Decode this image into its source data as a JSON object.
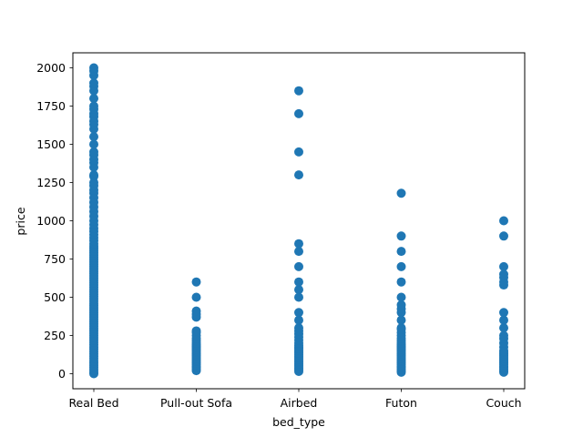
{
  "chart_data": {
    "type": "scatter",
    "xlabel": "bed_type",
    "ylabel": "price",
    "ylim": [
      -100,
      2100
    ],
    "categories": [
      "Real Bed",
      "Pull-out Sofa",
      "Airbed",
      "Futon",
      "Couch"
    ],
    "yticks": [
      0,
      250,
      500,
      750,
      1000,
      1250,
      1500,
      1750,
      2000
    ],
    "ytick_labels": [
      "0",
      "250",
      "500",
      "750",
      "1000",
      "1250",
      "1500",
      "1750",
      "2000"
    ],
    "marker_color": "#1f77b4",
    "grid": false,
    "series": [
      {
        "points": [
          {
            "x": "Real Bed",
            "y": 0
          },
          {
            "x": "Real Bed",
            "y": 10
          },
          {
            "x": "Real Bed",
            "y": 25
          },
          {
            "x": "Real Bed",
            "y": 40
          },
          {
            "x": "Real Bed",
            "y": 55
          },
          {
            "x": "Real Bed",
            "y": 70
          },
          {
            "x": "Real Bed",
            "y": 85
          },
          {
            "x": "Real Bed",
            "y": 100
          },
          {
            "x": "Real Bed",
            "y": 115
          },
          {
            "x": "Real Bed",
            "y": 130
          },
          {
            "x": "Real Bed",
            "y": 145
          },
          {
            "x": "Real Bed",
            "y": 160
          },
          {
            "x": "Real Bed",
            "y": 175
          },
          {
            "x": "Real Bed",
            "y": 190
          },
          {
            "x": "Real Bed",
            "y": 205
          },
          {
            "x": "Real Bed",
            "y": 220
          },
          {
            "x": "Real Bed",
            "y": 235
          },
          {
            "x": "Real Bed",
            "y": 250
          },
          {
            "x": "Real Bed",
            "y": 265
          },
          {
            "x": "Real Bed",
            "y": 280
          },
          {
            "x": "Real Bed",
            "y": 295
          },
          {
            "x": "Real Bed",
            "y": 310
          },
          {
            "x": "Real Bed",
            "y": 325
          },
          {
            "x": "Real Bed",
            "y": 340
          },
          {
            "x": "Real Bed",
            "y": 355
          },
          {
            "x": "Real Bed",
            "y": 370
          },
          {
            "x": "Real Bed",
            "y": 385
          },
          {
            "x": "Real Bed",
            "y": 400
          },
          {
            "x": "Real Bed",
            "y": 415
          },
          {
            "x": "Real Bed",
            "y": 430
          },
          {
            "x": "Real Bed",
            "y": 445
          },
          {
            "x": "Real Bed",
            "y": 460
          },
          {
            "x": "Real Bed",
            "y": 475
          },
          {
            "x": "Real Bed",
            "y": 490
          },
          {
            "x": "Real Bed",
            "y": 505
          },
          {
            "x": "Real Bed",
            "y": 520
          },
          {
            "x": "Real Bed",
            "y": 535
          },
          {
            "x": "Real Bed",
            "y": 550
          },
          {
            "x": "Real Bed",
            "y": 565
          },
          {
            "x": "Real Bed",
            "y": 580
          },
          {
            "x": "Real Bed",
            "y": 595
          },
          {
            "x": "Real Bed",
            "y": 610
          },
          {
            "x": "Real Bed",
            "y": 625
          },
          {
            "x": "Real Bed",
            "y": 640
          },
          {
            "x": "Real Bed",
            "y": 655
          },
          {
            "x": "Real Bed",
            "y": 670
          },
          {
            "x": "Real Bed",
            "y": 685
          },
          {
            "x": "Real Bed",
            "y": 700
          },
          {
            "x": "Real Bed",
            "y": 715
          },
          {
            "x": "Real Bed",
            "y": 730
          },
          {
            "x": "Real Bed",
            "y": 745
          },
          {
            "x": "Real Bed",
            "y": 760
          },
          {
            "x": "Real Bed",
            "y": 775
          },
          {
            "x": "Real Bed",
            "y": 790
          },
          {
            "x": "Real Bed",
            "y": 805
          },
          {
            "x": "Real Bed",
            "y": 820
          },
          {
            "x": "Real Bed",
            "y": 835
          },
          {
            "x": "Real Bed",
            "y": 850
          },
          {
            "x": "Real Bed",
            "y": 870
          },
          {
            "x": "Real Bed",
            "y": 890
          },
          {
            "x": "Real Bed",
            "y": 910
          },
          {
            "x": "Real Bed",
            "y": 930
          },
          {
            "x": "Real Bed",
            "y": 950
          },
          {
            "x": "Real Bed",
            "y": 975
          },
          {
            "x": "Real Bed",
            "y": 1000
          },
          {
            "x": "Real Bed",
            "y": 1030
          },
          {
            "x": "Real Bed",
            "y": 1060
          },
          {
            "x": "Real Bed",
            "y": 1090
          },
          {
            "x": "Real Bed",
            "y": 1120
          },
          {
            "x": "Real Bed",
            "y": 1150
          },
          {
            "x": "Real Bed",
            "y": 1180
          },
          {
            "x": "Real Bed",
            "y": 1200
          },
          {
            "x": "Real Bed",
            "y": 1230
          },
          {
            "x": "Real Bed",
            "y": 1250
          },
          {
            "x": "Real Bed",
            "y": 1290
          },
          {
            "x": "Real Bed",
            "y": 1300
          },
          {
            "x": "Real Bed",
            "y": 1350
          },
          {
            "x": "Real Bed",
            "y": 1380
          },
          {
            "x": "Real Bed",
            "y": 1400
          },
          {
            "x": "Real Bed",
            "y": 1430
          },
          {
            "x": "Real Bed",
            "y": 1450
          },
          {
            "x": "Real Bed",
            "y": 1500
          },
          {
            "x": "Real Bed",
            "y": 1550
          },
          {
            "x": "Real Bed",
            "y": 1600
          },
          {
            "x": "Real Bed",
            "y": 1630
          },
          {
            "x": "Real Bed",
            "y": 1650
          },
          {
            "x": "Real Bed",
            "y": 1680
          },
          {
            "x": "Real Bed",
            "y": 1700
          },
          {
            "x": "Real Bed",
            "y": 1730
          },
          {
            "x": "Real Bed",
            "y": 1750
          },
          {
            "x": "Real Bed",
            "y": 1800
          },
          {
            "x": "Real Bed",
            "y": 1850
          },
          {
            "x": "Real Bed",
            "y": 1880
          },
          {
            "x": "Real Bed",
            "y": 1900
          },
          {
            "x": "Real Bed",
            "y": 1950
          },
          {
            "x": "Real Bed",
            "y": 1980
          },
          {
            "x": "Real Bed",
            "y": 2000
          },
          {
            "x": "Pull-out Sofa",
            "y": 20
          },
          {
            "x": "Pull-out Sofa",
            "y": 30
          },
          {
            "x": "Pull-out Sofa",
            "y": 40
          },
          {
            "x": "Pull-out Sofa",
            "y": 50
          },
          {
            "x": "Pull-out Sofa",
            "y": 60
          },
          {
            "x": "Pull-out Sofa",
            "y": 70
          },
          {
            "x": "Pull-out Sofa",
            "y": 80
          },
          {
            "x": "Pull-out Sofa",
            "y": 90
          },
          {
            "x": "Pull-out Sofa",
            "y": 100
          },
          {
            "x": "Pull-out Sofa",
            "y": 110
          },
          {
            "x": "Pull-out Sofa",
            "y": 120
          },
          {
            "x": "Pull-out Sofa",
            "y": 130
          },
          {
            "x": "Pull-out Sofa",
            "y": 140
          },
          {
            "x": "Pull-out Sofa",
            "y": 150
          },
          {
            "x": "Pull-out Sofa",
            "y": 160
          },
          {
            "x": "Pull-out Sofa",
            "y": 170
          },
          {
            "x": "Pull-out Sofa",
            "y": 180
          },
          {
            "x": "Pull-out Sofa",
            "y": 190
          },
          {
            "x": "Pull-out Sofa",
            "y": 200
          },
          {
            "x": "Pull-out Sofa",
            "y": 215
          },
          {
            "x": "Pull-out Sofa",
            "y": 230
          },
          {
            "x": "Pull-out Sofa",
            "y": 250
          },
          {
            "x": "Pull-out Sofa",
            "y": 270
          },
          {
            "x": "Pull-out Sofa",
            "y": 280
          },
          {
            "x": "Pull-out Sofa",
            "y": 370
          },
          {
            "x": "Pull-out Sofa",
            "y": 390
          },
          {
            "x": "Pull-out Sofa",
            "y": 410
          },
          {
            "x": "Pull-out Sofa",
            "y": 500
          },
          {
            "x": "Pull-out Sofa",
            "y": 600
          },
          {
            "x": "Airbed",
            "y": 15
          },
          {
            "x": "Airbed",
            "y": 25
          },
          {
            "x": "Airbed",
            "y": 35
          },
          {
            "x": "Airbed",
            "y": 45
          },
          {
            "x": "Airbed",
            "y": 55
          },
          {
            "x": "Airbed",
            "y": 65
          },
          {
            "x": "Airbed",
            "y": 75
          },
          {
            "x": "Airbed",
            "y": 85
          },
          {
            "x": "Airbed",
            "y": 95
          },
          {
            "x": "Airbed",
            "y": 105
          },
          {
            "x": "Airbed",
            "y": 115
          },
          {
            "x": "Airbed",
            "y": 125
          },
          {
            "x": "Airbed",
            "y": 135
          },
          {
            "x": "Airbed",
            "y": 145
          },
          {
            "x": "Airbed",
            "y": 155
          },
          {
            "x": "Airbed",
            "y": 165
          },
          {
            "x": "Airbed",
            "y": 175
          },
          {
            "x": "Airbed",
            "y": 185
          },
          {
            "x": "Airbed",
            "y": 200
          },
          {
            "x": "Airbed",
            "y": 220
          },
          {
            "x": "Airbed",
            "y": 240
          },
          {
            "x": "Airbed",
            "y": 260
          },
          {
            "x": "Airbed",
            "y": 280
          },
          {
            "x": "Airbed",
            "y": 300
          },
          {
            "x": "Airbed",
            "y": 350
          },
          {
            "x": "Airbed",
            "y": 400
          },
          {
            "x": "Airbed",
            "y": 500
          },
          {
            "x": "Airbed",
            "y": 550
          },
          {
            "x": "Airbed",
            "y": 600
          },
          {
            "x": "Airbed",
            "y": 700
          },
          {
            "x": "Airbed",
            "y": 800
          },
          {
            "x": "Airbed",
            "y": 850
          },
          {
            "x": "Airbed",
            "y": 1300
          },
          {
            "x": "Airbed",
            "y": 1450
          },
          {
            "x": "Airbed",
            "y": 1700
          },
          {
            "x": "Airbed",
            "y": 1850
          },
          {
            "x": "Futon",
            "y": 10
          },
          {
            "x": "Futon",
            "y": 20
          },
          {
            "x": "Futon",
            "y": 30
          },
          {
            "x": "Futon",
            "y": 40
          },
          {
            "x": "Futon",
            "y": 50
          },
          {
            "x": "Futon",
            "y": 60
          },
          {
            "x": "Futon",
            "y": 70
          },
          {
            "x": "Futon",
            "y": 80
          },
          {
            "x": "Futon",
            "y": 90
          },
          {
            "x": "Futon",
            "y": 100
          },
          {
            "x": "Futon",
            "y": 110
          },
          {
            "x": "Futon",
            "y": 120
          },
          {
            "x": "Futon",
            "y": 130
          },
          {
            "x": "Futon",
            "y": 140
          },
          {
            "x": "Futon",
            "y": 150
          },
          {
            "x": "Futon",
            "y": 160
          },
          {
            "x": "Futon",
            "y": 170
          },
          {
            "x": "Futon",
            "y": 180
          },
          {
            "x": "Futon",
            "y": 190
          },
          {
            "x": "Futon",
            "y": 200
          },
          {
            "x": "Futon",
            "y": 215
          },
          {
            "x": "Futon",
            "y": 230
          },
          {
            "x": "Futon",
            "y": 250
          },
          {
            "x": "Futon",
            "y": 270
          },
          {
            "x": "Futon",
            "y": 290
          },
          {
            "x": "Futon",
            "y": 300
          },
          {
            "x": "Futon",
            "y": 350
          },
          {
            "x": "Futon",
            "y": 400
          },
          {
            "x": "Futon",
            "y": 425
          },
          {
            "x": "Futon",
            "y": 450
          },
          {
            "x": "Futon",
            "y": 500
          },
          {
            "x": "Futon",
            "y": 600
          },
          {
            "x": "Futon",
            "y": 700
          },
          {
            "x": "Futon",
            "y": 800
          },
          {
            "x": "Futon",
            "y": 900
          },
          {
            "x": "Futon",
            "y": 1180
          },
          {
            "x": "Couch",
            "y": 10
          },
          {
            "x": "Couch",
            "y": 20
          },
          {
            "x": "Couch",
            "y": 30
          },
          {
            "x": "Couch",
            "y": 40
          },
          {
            "x": "Couch",
            "y": 50
          },
          {
            "x": "Couch",
            "y": 60
          },
          {
            "x": "Couch",
            "y": 70
          },
          {
            "x": "Couch",
            "y": 80
          },
          {
            "x": "Couch",
            "y": 90
          },
          {
            "x": "Couch",
            "y": 100
          },
          {
            "x": "Couch",
            "y": 110
          },
          {
            "x": "Couch",
            "y": 120
          },
          {
            "x": "Couch",
            "y": 130
          },
          {
            "x": "Couch",
            "y": 140
          },
          {
            "x": "Couch",
            "y": 150
          },
          {
            "x": "Couch",
            "y": 175
          },
          {
            "x": "Couch",
            "y": 200
          },
          {
            "x": "Couch",
            "y": 230
          },
          {
            "x": "Couch",
            "y": 250
          },
          {
            "x": "Couch",
            "y": 300
          },
          {
            "x": "Couch",
            "y": 350
          },
          {
            "x": "Couch",
            "y": 400
          },
          {
            "x": "Couch",
            "y": 580
          },
          {
            "x": "Couch",
            "y": 600
          },
          {
            "x": "Couch",
            "y": 630
          },
          {
            "x": "Couch",
            "y": 650
          },
          {
            "x": "Couch",
            "y": 700
          },
          {
            "x": "Couch",
            "y": 900
          },
          {
            "x": "Couch",
            "y": 1000
          }
        ]
      }
    ]
  }
}
